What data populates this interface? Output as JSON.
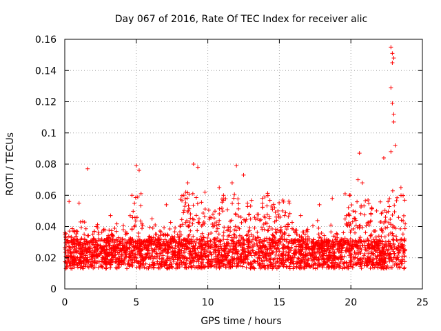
{
  "chart_data": {
    "type": "scatter",
    "title": "Day 067 of 2016, Rate Of TEC Index for receiver alic",
    "xlabel": "GPS time / hours",
    "ylabel": "ROTI / TECUs",
    "xlim": [
      0,
      25
    ],
    "ylim": [
      0,
      0.16
    ],
    "xticks": [
      0,
      5,
      10,
      15,
      20,
      25
    ],
    "xtick_labels": [
      "0",
      "5",
      "10",
      "15",
      "20",
      "25"
    ],
    "yticks": [
      0,
      0.02,
      0.04,
      0.06,
      0.08,
      0.1,
      0.12,
      0.14,
      0.16
    ],
    "ytick_labels": [
      "0",
      "0.02",
      "0.04",
      "0.06",
      "0.08",
      "0.1",
      "0.12",
      "0.14",
      "0.16"
    ],
    "grid": true,
    "marker": "+",
    "marker_color": "#ff0000",
    "x_range_of_data": [
      0.0,
      23.8
    ],
    "baseline_band": {
      "y_min": 0.005,
      "y_max": 0.03
    },
    "series": [
      {
        "name": "ROTI",
        "x": [
          1.6,
          5.0,
          5.2,
          9.0,
          9.3,
          12.0,
          12.5,
          20.6,
          20.5,
          20.8,
          22.3,
          22.8,
          22.9,
          23.0,
          22.9,
          22.8,
          22.9,
          23.0,
          23.0,
          23.1,
          22.8,
          0.3,
          1.0,
          3.2,
          4.7,
          7.1,
          8.6,
          9.8,
          10.8,
          11.7,
          13.8,
          14.9,
          16.5,
          17.8,
          18.7,
          19.6,
          21.2,
          22.6,
          23.5,
          2.2,
          6.1,
          11.1,
          15.7,
          19.9,
          21.8
        ],
        "y": [
          0.077,
          0.079,
          0.076,
          0.08,
          0.078,
          0.079,
          0.073,
          0.087,
          0.07,
          0.068,
          0.084,
          0.155,
          0.151,
          0.148,
          0.145,
          0.129,
          0.119,
          0.112,
          0.107,
          0.092,
          0.088,
          0.056,
          0.055,
          0.047,
          0.06,
          0.054,
          0.068,
          0.062,
          0.065,
          0.068,
          0.058,
          0.05,
          0.047,
          0.054,
          0.058,
          0.061,
          0.057,
          0.056,
          0.065,
          0.04,
          0.045,
          0.06,
          0.055,
          0.06,
          0.05
        ]
      }
    ]
  }
}
